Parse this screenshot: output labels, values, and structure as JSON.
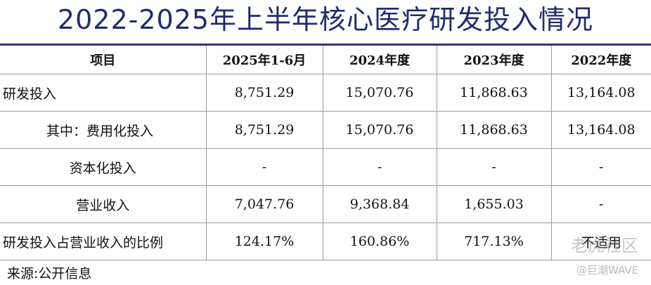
{
  "header": {
    "title": "2022-2025年上半年核心医疗研发投入情况"
  },
  "table": {
    "columns": [
      "项目",
      "2025年1-6月",
      "2024年度",
      "2023年度",
      "2022年度"
    ],
    "rows": [
      [
        "研发投入",
        "8,751.29",
        "15,070.76",
        "11,868.63",
        "13,164.08"
      ],
      [
        "其中：费用化投入",
        "8,751.29",
        "15,070.76",
        "11,868.63",
        "13,164.08"
      ],
      [
        "资本化投入",
        "-",
        "-",
        "-",
        "-"
      ],
      [
        "营业收入",
        "7,047.76",
        "9,368.84",
        "1,655.03",
        "-"
      ],
      [
        "研发投入占营业收入的比例",
        "124.17%",
        "160.86%",
        "717.13%",
        "不适用"
      ]
    ]
  },
  "footer": {
    "source": "来源:公开信息"
  },
  "watermark": {
    "main": "老虎社区",
    "credit": "@巨潮WAVE"
  }
}
